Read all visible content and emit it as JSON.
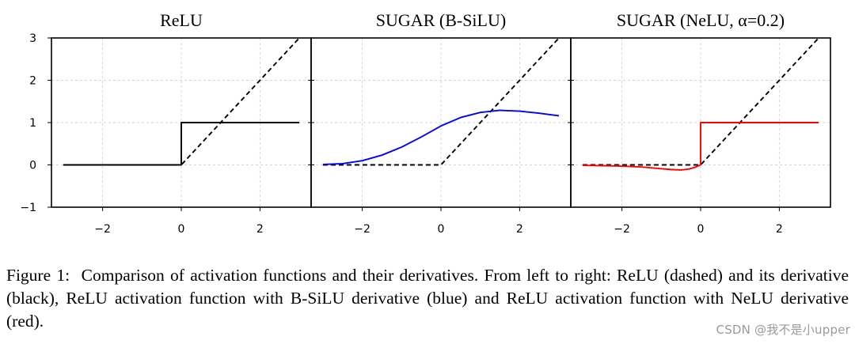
{
  "chart_data": [
    {
      "type": "line",
      "title": "ReLU",
      "xlim": [
        -3.3,
        3.3
      ],
      "ylim": [
        -1,
        3
      ],
      "xticks": [
        -2,
        0,
        2
      ],
      "xtick_labels": [
        "−2",
        "0",
        "2"
      ],
      "yticks": [
        -1,
        0,
        1,
        2,
        3
      ],
      "ytick_labels": [
        "−1",
        "0",
        "1",
        "2",
        "3"
      ],
      "grid": true,
      "series": [
        {
          "name": "ReLU",
          "style": "dashed",
          "color": "#000000",
          "x": [
            -3,
            0,
            3
          ],
          "y": [
            0,
            0,
            3
          ]
        },
        {
          "name": "ReLU derivative",
          "style": "solid",
          "color": "#000000",
          "x": [
            -3,
            0,
            0,
            3
          ],
          "y": [
            0,
            0,
            1,
            1
          ]
        }
      ]
    },
    {
      "type": "line",
      "title": "SUGAR (B-SiLU)",
      "xlim": [
        -3.3,
        3.3
      ],
      "ylim": [
        -1,
        3
      ],
      "xticks": [
        -2,
        0,
        2
      ],
      "xtick_labels": [
        "−2",
        "0",
        "2"
      ],
      "grid": true,
      "series": [
        {
          "name": "ReLU",
          "style": "dashed",
          "color": "#000000",
          "x": [
            -3,
            0,
            3
          ],
          "y": [
            0,
            0,
            3
          ]
        },
        {
          "name": "B-SiLU derivative",
          "style": "solid",
          "color": "#0000ff",
          "x": [
            -3,
            -2.5,
            -2,
            -1.5,
            -1,
            -0.5,
            0,
            0.5,
            1,
            1.5,
            2,
            2.5,
            3
          ],
          "y": [
            0.01,
            0.03,
            0.1,
            0.23,
            0.42,
            0.66,
            0.92,
            1.12,
            1.24,
            1.29,
            1.27,
            1.22,
            1.16
          ]
        }
      ]
    },
    {
      "type": "line",
      "title": "SUGAR (NeLU, α=0.2)",
      "xlim": [
        -3.3,
        3.3
      ],
      "ylim": [
        -1,
        3
      ],
      "xticks": [
        -2,
        0,
        2
      ],
      "xtick_labels": [
        "−2",
        "0",
        "2"
      ],
      "grid": true,
      "series": [
        {
          "name": "ReLU",
          "style": "dashed",
          "color": "#000000",
          "x": [
            -3,
            0,
            3
          ],
          "y": [
            0,
            0,
            3
          ]
        },
        {
          "name": "NeLU derivative",
          "style": "solid",
          "color": "#ff0000",
          "x": [
            -3,
            -2.5,
            -2,
            -1.5,
            -1,
            -0.75,
            -0.5,
            -0.3,
            -0.15,
            0,
            0,
            3
          ],
          "y": [
            -0.01,
            -0.02,
            -0.03,
            -0.05,
            -0.09,
            -0.11,
            -0.12,
            -0.1,
            -0.06,
            0,
            1,
            1
          ]
        }
      ]
    }
  ],
  "caption": {
    "label": "Figure 1:",
    "text": "Comparison of activation functions and their derivatives. From left to right: ReLU (dashed) and its derivative (black), ReLU activation function with B-SiLU derivative (blue) and ReLU activation function with NeLU derivative (red)."
  },
  "watermark": "CSDN @我不是小upper"
}
